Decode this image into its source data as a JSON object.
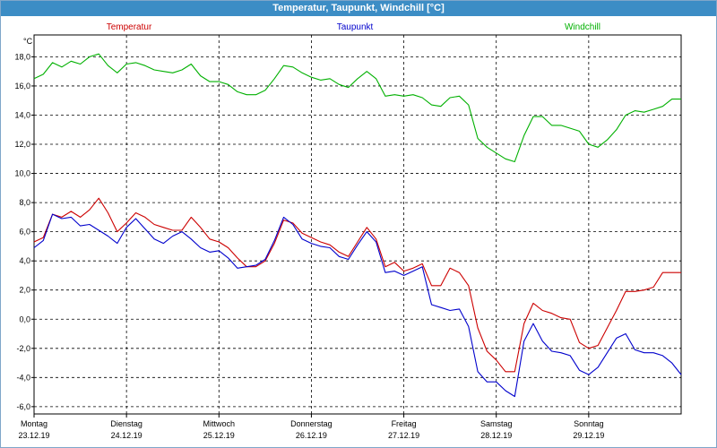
{
  "window": {
    "title": "Temperatur, Taupunkt, Windchill [°C]"
  },
  "chart_data": {
    "type": "line",
    "title": "Temperatur, Taupunkt, Windchill [°C]",
    "ylabel": "°C",
    "ylim": [
      -6.5,
      19.5
    ],
    "xlim": [
      0,
      7
    ],
    "grid": true,
    "legend_position": "top",
    "y_ticks": [
      "18,0",
      "16,0",
      "14,0",
      "12,0",
      "10,0",
      "8,0",
      "6,0",
      "4,0",
      "2,0",
      "0,0",
      "-2,0",
      "-4,0",
      "-6,0"
    ],
    "y_tick_values": [
      18,
      16,
      14,
      12,
      10,
      8,
      6,
      4,
      2,
      0,
      -2,
      -4,
      -6
    ],
    "x_ticks": [
      {
        "day": "Montag",
        "date": "23.12.19"
      },
      {
        "day": "Dienstag",
        "date": "24.12.19"
      },
      {
        "day": "Mittwoch",
        "date": "25.12.19"
      },
      {
        "day": "Donnerstag",
        "date": "26.12.19"
      },
      {
        "day": "Freitag",
        "date": "27.12.19"
      },
      {
        "day": "Samstag",
        "date": "28.12.19"
      },
      {
        "day": "Sonntag",
        "date": "29.12.19"
      }
    ],
    "series": [
      {
        "name": "Temperatur",
        "color": "#cc0000",
        "x": [
          0,
          0.1,
          0.2,
          0.3,
          0.4,
          0.5,
          0.6,
          0.7,
          0.8,
          0.9,
          1.0,
          1.1,
          1.2,
          1.3,
          1.4,
          1.5,
          1.6,
          1.7,
          1.8,
          1.9,
          2.0,
          2.1,
          2.2,
          2.3,
          2.4,
          2.5,
          2.6,
          2.7,
          2.8,
          2.9,
          3.0,
          3.1,
          3.2,
          3.3,
          3.4,
          3.5,
          3.6,
          3.7,
          3.8,
          3.9,
          4.0,
          4.1,
          4.2,
          4.3,
          4.4,
          4.5,
          4.6,
          4.7,
          4.8,
          4.9,
          5.0,
          5.1,
          5.2,
          5.3,
          5.4,
          5.5,
          5.6,
          5.7,
          5.8,
          5.9,
          6.0,
          6.1,
          6.2,
          6.3,
          6.4,
          6.5,
          6.6,
          6.7,
          6.8,
          6.9,
          7.0
        ],
        "values": [
          5.3,
          5.6,
          7.2,
          7.0,
          7.4,
          7.0,
          7.5,
          8.3,
          7.3,
          6.0,
          6.6,
          7.3,
          7.0,
          6.5,
          6.3,
          6.1,
          6.1,
          7.0,
          6.3,
          5.5,
          5.3,
          4.9,
          4.2,
          3.6,
          3.6,
          4.0,
          5.2,
          6.8,
          6.6,
          5.9,
          5.6,
          5.3,
          5.1,
          4.6,
          4.3,
          5.3,
          6.3,
          5.5,
          3.6,
          3.9,
          3.3,
          3.5,
          3.8,
          2.3,
          2.3,
          3.5,
          3.2,
          2.3,
          -0.6,
          -2.2,
          -2.8,
          -3.6,
          -3.6,
          -0.3,
          1.1,
          0.6,
          0.4,
          0.1,
          0.0,
          -1.6,
          -2.0,
          -1.8,
          -0.6,
          0.6,
          1.9,
          1.9,
          2.0,
          2.2,
          3.2,
          3.2,
          3.2
        ]
      },
      {
        "name": "Taupunkt",
        "color": "#0000cc",
        "x": [
          0,
          0.1,
          0.2,
          0.3,
          0.4,
          0.5,
          0.6,
          0.7,
          0.8,
          0.9,
          1.0,
          1.1,
          1.2,
          1.3,
          1.4,
          1.5,
          1.6,
          1.7,
          1.8,
          1.9,
          2.0,
          2.1,
          2.2,
          2.3,
          2.4,
          2.5,
          2.6,
          2.7,
          2.8,
          2.9,
          3.0,
          3.1,
          3.2,
          3.3,
          3.4,
          3.5,
          3.6,
          3.7,
          3.8,
          3.9,
          4.0,
          4.1,
          4.2,
          4.3,
          4.4,
          4.5,
          4.6,
          4.7,
          4.8,
          4.9,
          5.0,
          5.1,
          5.2,
          5.3,
          5.4,
          5.5,
          5.6,
          5.7,
          5.8,
          5.9,
          6.0,
          6.1,
          6.2,
          6.3,
          6.4,
          6.5,
          6.6,
          6.7,
          6.8,
          6.9,
          7.0
        ],
        "values": [
          4.9,
          5.4,
          7.2,
          6.9,
          7.0,
          6.4,
          6.5,
          6.1,
          5.7,
          5.2,
          6.3,
          6.9,
          6.2,
          5.5,
          5.2,
          5.7,
          6.0,
          5.5,
          4.9,
          4.6,
          4.7,
          4.2,
          3.5,
          3.6,
          3.7,
          4.1,
          5.4,
          7.0,
          6.5,
          5.5,
          5.2,
          5.0,
          4.9,
          4.3,
          4.1,
          5.1,
          6.0,
          5.3,
          3.2,
          3.3,
          3.0,
          3.3,
          3.6,
          1.0,
          0.8,
          0.6,
          0.7,
          -0.5,
          -3.6,
          -4.3,
          -4.3,
          -4.9,
          -5.3,
          -1.5,
          -0.3,
          -1.5,
          -2.2,
          -2.3,
          -2.5,
          -3.5,
          -3.8,
          -3.3,
          -2.3,
          -1.3,
          -1.0,
          -2.1,
          -2.3,
          -2.3,
          -2.5,
          -3.0,
          -3.8
        ]
      },
      {
        "name": "Windchill",
        "color": "#00b000",
        "x": [
          0,
          0.1,
          0.2,
          0.3,
          0.4,
          0.5,
          0.6,
          0.7,
          0.8,
          0.9,
          1.0,
          1.1,
          1.2,
          1.3,
          1.4,
          1.5,
          1.6,
          1.7,
          1.8,
          1.9,
          2.0,
          2.1,
          2.2,
          2.3,
          2.4,
          2.5,
          2.6,
          2.7,
          2.8,
          2.9,
          3.0,
          3.1,
          3.2,
          3.3,
          3.4,
          3.5,
          3.6,
          3.7,
          3.8,
          3.9,
          4.0,
          4.1,
          4.2,
          4.3,
          4.4,
          4.5,
          4.6,
          4.7,
          4.8,
          4.9,
          5.0,
          5.1,
          5.2,
          5.3,
          5.4,
          5.5,
          5.6,
          5.7,
          5.8,
          5.9,
          6.0,
          6.1,
          6.2,
          6.3,
          6.4,
          6.5,
          6.6,
          6.7,
          6.8,
          6.9,
          7.0
        ],
        "values": [
          16.5,
          16.8,
          17.6,
          17.3,
          17.7,
          17.5,
          18.0,
          18.2,
          17.4,
          16.9,
          17.5,
          17.6,
          17.4,
          17.1,
          17.0,
          16.9,
          17.1,
          17.5,
          16.7,
          16.3,
          16.3,
          16.1,
          15.6,
          15.4,
          15.4,
          15.7,
          16.5,
          17.4,
          17.3,
          16.9,
          16.6,
          16.4,
          16.5,
          16.1,
          15.9,
          16.5,
          17.0,
          16.5,
          15.3,
          15.4,
          15.3,
          15.4,
          15.2,
          14.7,
          14.6,
          15.2,
          15.3,
          14.7,
          12.4,
          11.8,
          11.4,
          11.0,
          10.8,
          12.6,
          13.9,
          13.9,
          13.3,
          13.3,
          13.1,
          12.9,
          12.0,
          11.8,
          12.3,
          13.0,
          14.0,
          14.3,
          14.2,
          14.4,
          14.6,
          15.1,
          15.1
        ]
      }
    ]
  }
}
